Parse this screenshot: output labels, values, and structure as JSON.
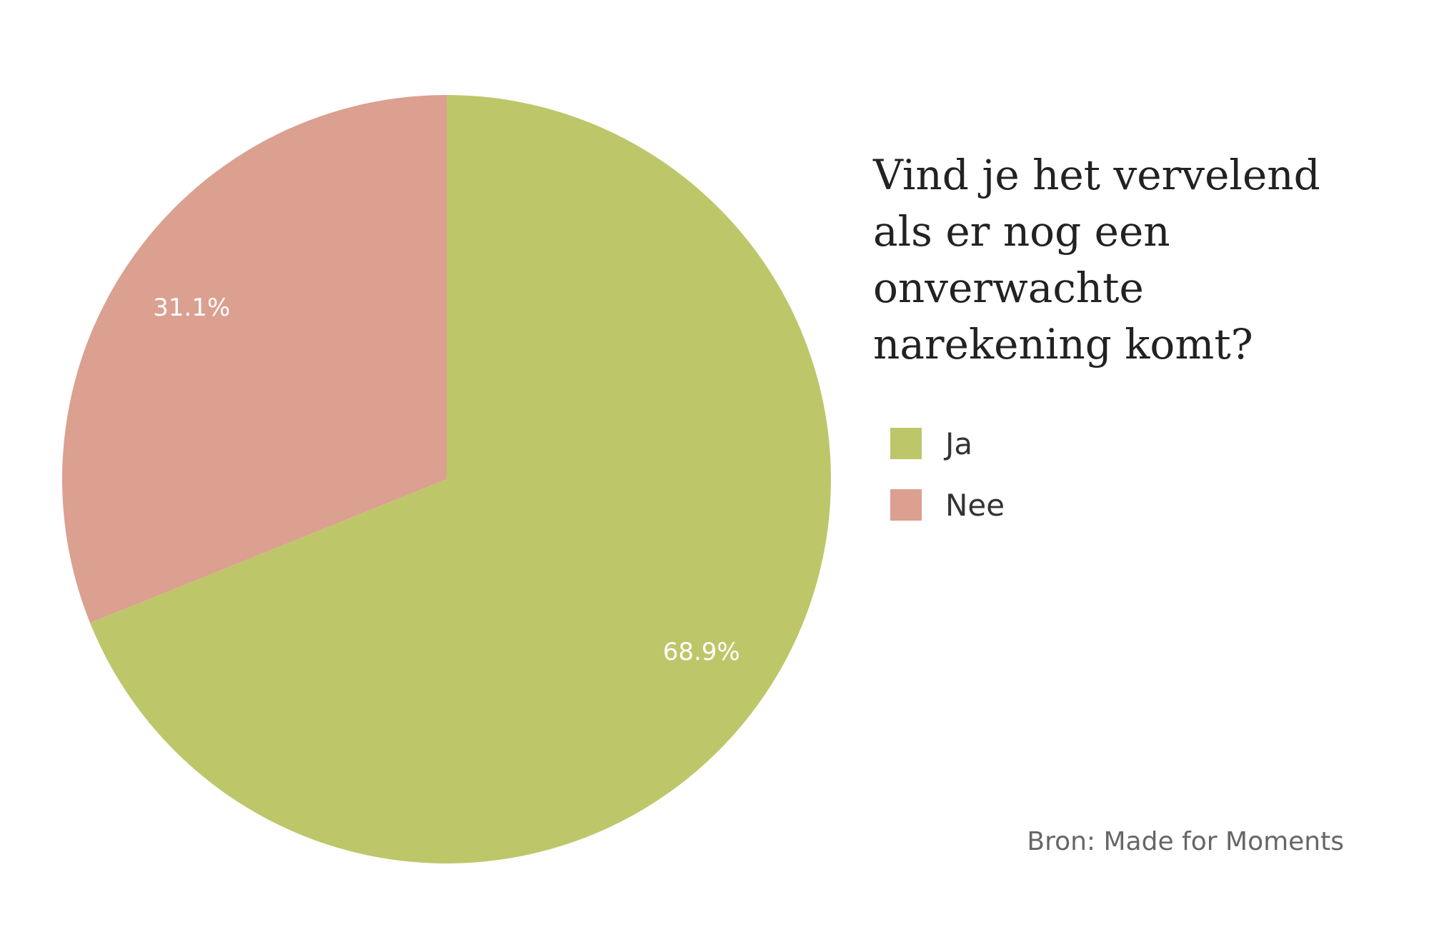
{
  "chart_data": {
    "type": "pie",
    "title": "Vind je het vervelend als er nog een onverwachte narekening komt?",
    "slices": [
      {
        "label": "Ja",
        "value": 68.9,
        "value_label": "68.9%",
        "color": "#bec66a"
      },
      {
        "label": "Nee",
        "value": 31.1,
        "value_label": "31.1%",
        "color": "#dba08f"
      }
    ],
    "legend_position": "right"
  },
  "footer": {
    "source": "Bron: Made for Moments"
  }
}
